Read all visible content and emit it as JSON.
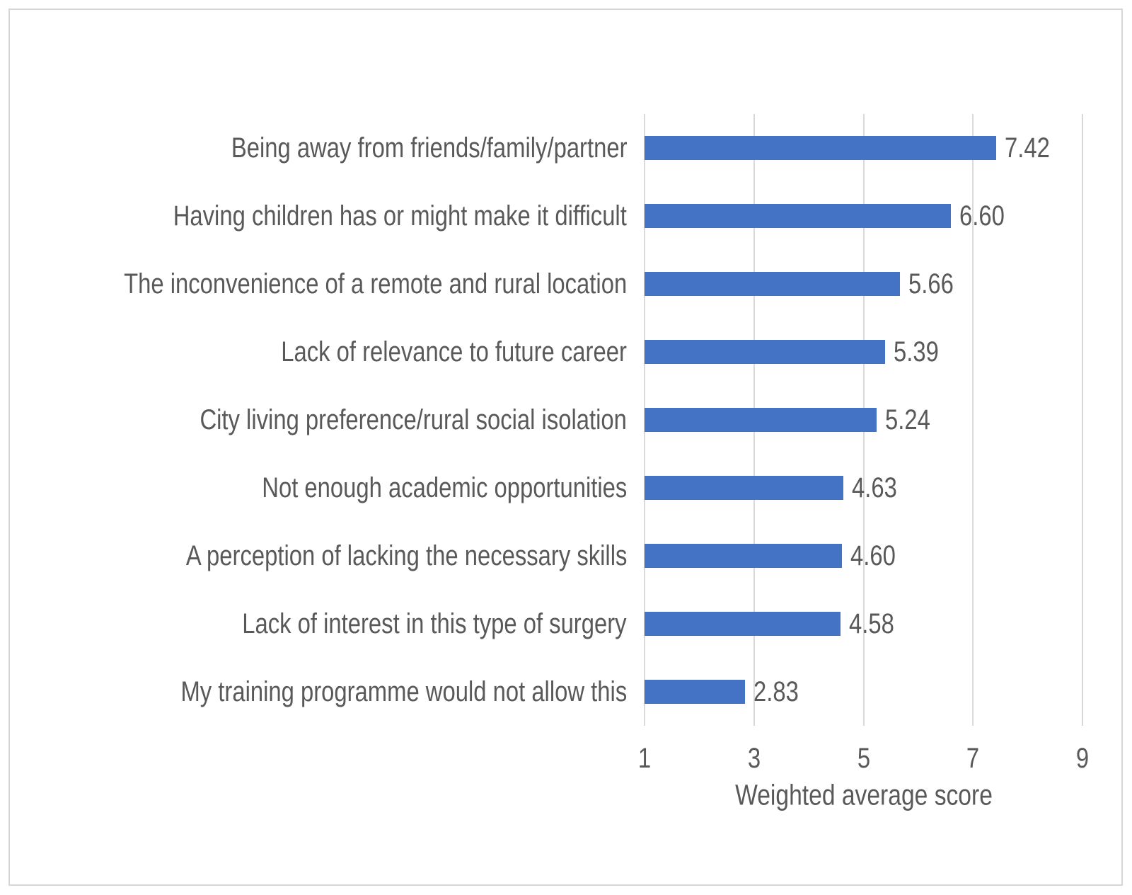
{
  "figure": {
    "background": "#ffffff",
    "border_color": "#d7d7d7"
  },
  "chart_data": {
    "type": "bar",
    "orientation": "horizontal",
    "title": "",
    "categories": [
      "Being away from friends/family/partner",
      "Having children has or might make it difficult",
      "The inconvenience of a remote and rural location",
      "Lack of relevance to future career",
      "City living preference/rural social isolation",
      "Not enough academic opportunities",
      "A perception of lacking the necessary skills",
      "Lack of interest in this type of surgery",
      "My training programme would not allow this"
    ],
    "values": [
      7.42,
      6.6,
      5.66,
      5.39,
      5.24,
      4.63,
      4.6,
      4.58,
      2.83
    ],
    "value_labels": [
      "7.42",
      "6.60",
      "5.66",
      "5.39",
      "5.24",
      "4.63",
      "4.60",
      "4.58",
      "2.83"
    ],
    "xlabel": "Weighted average score",
    "xticks": [
      1,
      3,
      5,
      7,
      9
    ],
    "xlim": [
      1,
      9
    ],
    "grid": true,
    "legend": false,
    "bar_color": "#4472c4",
    "gridline_color": "#d9d9d9",
    "text_color": "#595959"
  }
}
